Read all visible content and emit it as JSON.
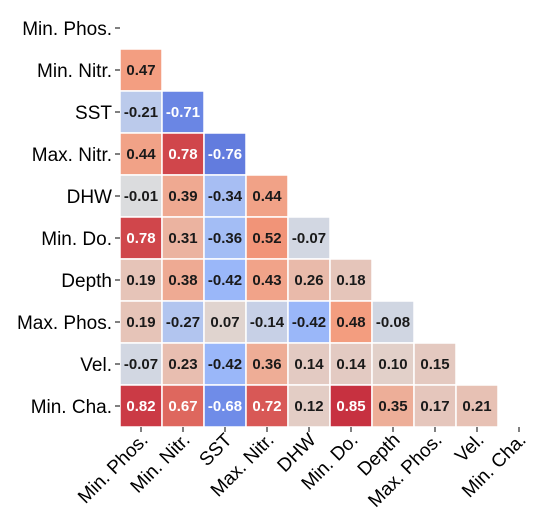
{
  "chart_data": {
    "type": "heatmap",
    "title": "",
    "labels": [
      "Min. Phos.",
      "Min. Nitr.",
      "SST",
      "Max. Nitr.",
      "DHW",
      "Min. Do.",
      "Depth",
      "Max. Phos.",
      "Vel.",
      "Min. Cha."
    ],
    "mask": "upper triangle and diagonal hidden",
    "colormap": "coolwarm",
    "value_range": [
      -1,
      1
    ],
    "rows": [
      {
        "row": "Min. Phos.",
        "values": []
      },
      {
        "row": "Min. Nitr.",
        "values": [
          0.47
        ]
      },
      {
        "row": "SST",
        "values": [
          -0.21,
          -0.71
        ]
      },
      {
        "row": "Max. Nitr.",
        "values": [
          0.44,
          0.78,
          -0.76
        ]
      },
      {
        "row": "DHW",
        "values": [
          -0.01,
          0.39,
          -0.34,
          0.44
        ]
      },
      {
        "row": "Min. Do.",
        "values": [
          0.78,
          0.31,
          -0.36,
          0.52,
          -0.07
        ]
      },
      {
        "row": "Depth",
        "values": [
          0.19,
          0.38,
          -0.42,
          0.43,
          0.26,
          0.18
        ]
      },
      {
        "row": "Max. Phos.",
        "values": [
          0.19,
          -0.27,
          0.07,
          -0.14,
          -0.42,
          0.48,
          -0.08
        ]
      },
      {
        "row": "Vel.",
        "values": [
          -0.07,
          0.23,
          -0.42,
          0.36,
          0.14,
          0.14,
          0.1,
          0.15
        ]
      },
      {
        "row": "Min. Cha.",
        "values": [
          0.82,
          0.67,
          -0.68,
          0.72,
          0.12,
          0.85,
          0.35,
          0.17,
          0.21
        ]
      }
    ]
  }
}
